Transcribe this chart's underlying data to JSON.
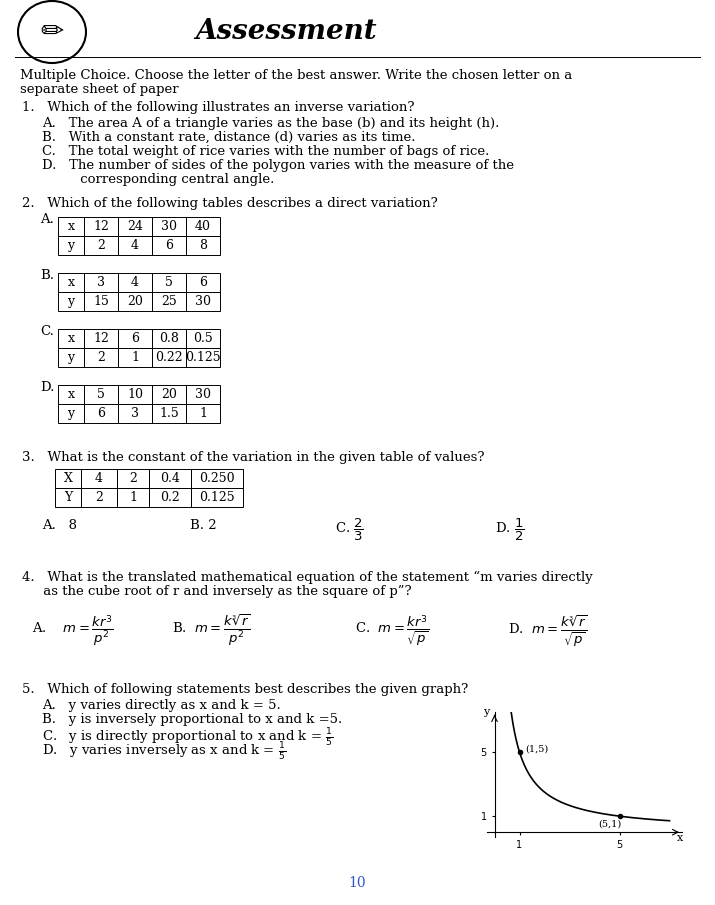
{
  "bg_color": "#ffffff",
  "text_color": "#000000",
  "title": "Assessment",
  "intro_line1": "Multiple Choice. Choose the letter of the best answer. Write the chosen letter on a",
  "intro_line2": "separate sheet of paper",
  "q1_stem": "1.   Which of the following illustrates an inverse variation?",
  "q1_A": "A.   The area A of a triangle varies as the base (b) and its height (h).",
  "q1_B": "B.   With a constant rate, distance (d) varies as its time.",
  "q1_C": "C.   The total weight of rice varies with the number of bags of rice.",
  "q1_D1": "D.   The number of sides of the polygon varies with the measure of the",
  "q1_D2": "         corresponding central angle.",
  "q2_stem": "2.   Which of the following tables describes a direct variation?",
  "q2_label_A": "A.",
  "q2_label_B": "B.",
  "q2_label_C": "C.",
  "q2_label_D": "D.",
  "tableA": [
    [
      "x",
      "12",
      "24",
      "30",
      "40"
    ],
    [
      "y",
      "2",
      "4",
      "6",
      "8"
    ]
  ],
  "tableB": [
    [
      "x",
      "3",
      "4",
      "5",
      "6"
    ],
    [
      "y",
      "15",
      "20",
      "25",
      "30"
    ]
  ],
  "tableC": [
    [
      "x",
      "12",
      "6",
      "0.8",
      "0.5"
    ],
    [
      "y",
      "2",
      "1",
      "0.22",
      "0.125"
    ]
  ],
  "tableD": [
    [
      "x",
      "5",
      "10",
      "20",
      "30"
    ],
    [
      "y",
      "6",
      "3",
      "1.5",
      "1"
    ]
  ],
  "q3_stem": "3.   What is the constant of the variation in the given table of values?",
  "q3_table": [
    [
      "X",
      "4",
      "2",
      "0.4",
      "0.250"
    ],
    [
      "Y",
      "2",
      "1",
      "0.2",
      "0.125"
    ]
  ],
  "q3_A": "A.   8",
  "q3_B": "B. 2",
  "q4_stem1": "4.   What is the translated mathematical equation of the statement “m varies directly",
  "q4_stem2": "     as the cube root of r and inversely as the square of p”?",
  "q5_stem": "5.   Which of following statements best describes the given graph?",
  "q5_A": "A.   y varies directly as x and k = 5.",
  "q5_B": "B.   y is inversely proportional to x and k =5.",
  "graph_point1": "(1,5)",
  "graph_point2": "(5,1)",
  "page_num": "10",
  "page_num_color": "#3355cc"
}
